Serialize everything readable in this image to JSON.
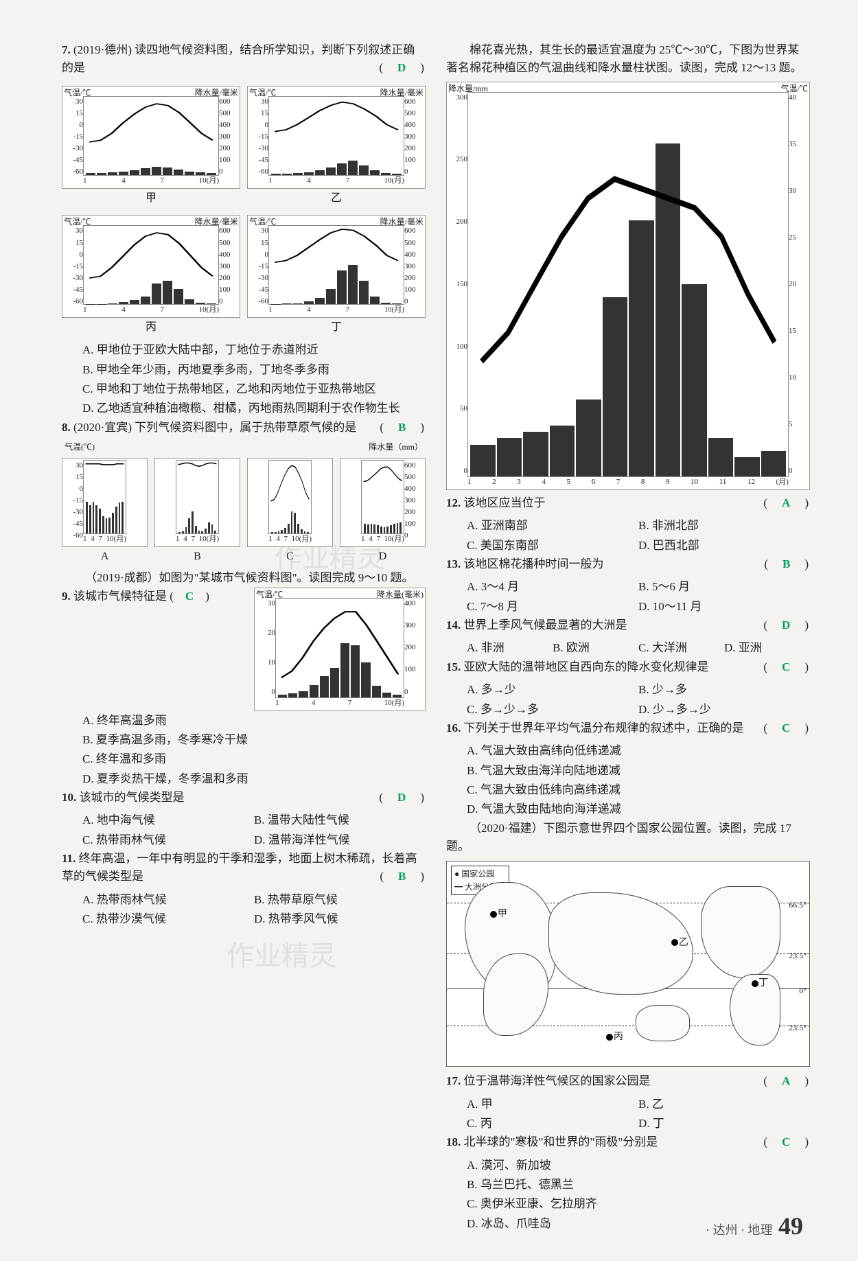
{
  "footer": {
    "region": "· 达州 · 地理",
    "page": "49"
  },
  "watermarks": [
    "作业精灵",
    "作业精灵"
  ],
  "chart_axis": {
    "temp_label": "气温/℃",
    "precip_label": "降水量/毫米",
    "precip_label_mm": "降水量（mm）",
    "precip_label_hao": "降水量(毫米)",
    "precip_mm": "降水量/mm",
    "temp_c": "气温/℃",
    "month": "(月)",
    "temp_ticks_30_n60": [
      "30",
      "15",
      "0",
      "-15",
      "-30",
      "-45",
      "-60"
    ],
    "precip_ticks_600": [
      "600",
      "500",
      "400",
      "300",
      "200",
      "100",
      "0"
    ],
    "x_months": [
      "1",
      "4",
      "7",
      "10(月)"
    ],
    "x_months_b": [
      "1",
      "4",
      "7",
      "10月"
    ],
    "cotton_y_l": [
      "300",
      "250",
      "200",
      "150",
      "100",
      "50",
      "0"
    ],
    "cotton_y_r": [
      "40",
      "35",
      "30",
      "25",
      "20",
      "15",
      "10",
      "5",
      "0"
    ],
    "cotton_x": [
      "1",
      "2",
      "3",
      "4",
      "5",
      "6",
      "7",
      "8",
      "9",
      "10",
      "11",
      "12",
      "(月)"
    ],
    "chengdu_temp": [
      "30",
      "20",
      "10",
      "0"
    ],
    "chengdu_precip": [
      "400",
      "300",
      "200",
      "100",
      "0"
    ]
  },
  "charts": {
    "q7": {
      "names": [
        "甲",
        "乙",
        "丙",
        "丁"
      ],
      "temp_lines": {
        "jia": [
          -22,
          -20,
          -12,
          0,
          10,
          18,
          22,
          20,
          12,
          0,
          -12,
          -20
        ],
        "yi": [
          -10,
          -8,
          -2,
          6,
          14,
          20,
          24,
          22,
          16,
          8,
          -2,
          -8
        ],
        "bing": [
          -30,
          -28,
          -18,
          -5,
          8,
          18,
          22,
          20,
          10,
          -4,
          -18,
          -28
        ],
        "ding": [
          -12,
          -10,
          -4,
          5,
          14,
          22,
          26,
          25,
          18,
          8,
          -4,
          -10
        ]
      },
      "precip_bars": {
        "jia": [
          15,
          15,
          18,
          25,
          35,
          50,
          60,
          55,
          40,
          25,
          18,
          15
        ],
        "yi": [
          8,
          10,
          12,
          20,
          35,
          55,
          90,
          110,
          70,
          35,
          15,
          10
        ],
        "bing": [
          5,
          5,
          8,
          18,
          35,
          60,
          160,
          180,
          120,
          40,
          12,
          6
        ],
        "ding": [
          5,
          6,
          10,
          25,
          50,
          120,
          260,
          300,
          180,
          60,
          15,
          6
        ]
      }
    },
    "q8": {
      "names": [
        "A",
        "B",
        "C",
        "D"
      ],
      "temp": {
        "A": [
          26,
          26,
          26,
          26,
          26,
          25,
          25,
          25,
          25,
          26,
          26,
          26
        ],
        "B": [
          25,
          26,
          27,
          27,
          26,
          24,
          23,
          24,
          26,
          27,
          27,
          26
        ],
        "C": [
          -20,
          -18,
          -10,
          2,
          12,
          20,
          24,
          22,
          14,
          4,
          -10,
          -18
        ],
        "D": [
          4,
          5,
          8,
          12,
          16,
          20,
          22,
          22,
          18,
          13,
          8,
          5
        ]
      },
      "precip": {
        "A": [
          260,
          230,
          260,
          230,
          200,
          140,
          120,
          130,
          170,
          220,
          250,
          260
        ],
        "B": [
          10,
          15,
          50,
          120,
          180,
          60,
          20,
          15,
          40,
          90,
          70,
          20
        ],
        "C": [
          8,
          8,
          12,
          25,
          45,
          80,
          180,
          170,
          80,
          30,
          12,
          8
        ],
        "D": [
          80,
          70,
          75,
          70,
          65,
          55,
          50,
          55,
          65,
          80,
          85,
          90
        ]
      }
    },
    "chengdu": {
      "temp": [
        6,
        8,
        12,
        17,
        21,
        24,
        26,
        26,
        22,
        17,
        12,
        7
      ],
      "precip": [
        10,
        15,
        25,
        50,
        85,
        120,
        220,
        210,
        140,
        45,
        18,
        10
      ]
    },
    "cotton": {
      "temp": [
        12,
        15,
        20,
        25,
        29,
        31,
        30,
        29,
        28,
        25,
        19,
        14
      ],
      "precip": [
        25,
        30,
        35,
        40,
        60,
        140,
        200,
        260,
        150,
        30,
        15,
        20
      ]
    }
  },
  "left": {
    "q7": {
      "num": "7.",
      "src": "(2019·德州)",
      "stem": "读四地气候资料图，结合所学知识，判断下列叙述正确的是",
      "answer": "D",
      "opts": [
        "A. 甲地位于亚欧大陆中部，丁地位于赤道附近",
        "B. 甲地全年少雨，丙地夏季多雨，丁地冬季多雨",
        "C. 甲地和丁地位于热带地区，乙地和丙地位于亚热带地区",
        "D. 乙地适宜种植油橄榄、柑橘，丙地雨热同期利于农作物生长"
      ]
    },
    "q8": {
      "num": "8.",
      "src": "(2020·宜宾)",
      "stem": "下列气候资料图中，属于热带草原气候的是",
      "answer": "B",
      "axis_l": "气温(℃)",
      "axis_r": "降水量（mm）"
    },
    "intro910": "（2019·成都）如图为\"某城市气候资料图\"。读图完成 9～10 题。",
    "q9": {
      "num": "9.",
      "stem": "该城市气候特征是",
      "answer": "C",
      "opts": [
        "A. 终年高温多雨",
        "B. 夏季高温多雨，冬季寒冷干燥",
        "C. 终年温和多雨",
        "D. 夏季炎热干燥，冬季温和多雨"
      ]
    },
    "q10": {
      "num": "10.",
      "stem": "该城市的气候类型是",
      "answer": "D",
      "opts": [
        "A. 地中海气候",
        "B. 温带大陆性气候",
        "C. 热带雨林气候",
        "D. 温带海洋性气候"
      ]
    },
    "q11": {
      "num": "11.",
      "stem": "终年高温，一年中有明显的干季和湿季，地面上树木稀疏，长着高草的气候类型是",
      "answer": "B",
      "opts": [
        "A. 热带雨林气候",
        "B. 热带草原气候",
        "C. 热带沙漠气候",
        "D. 热带季风气候"
      ]
    }
  },
  "right": {
    "intro1213": "棉花喜光热，其生长的最适宜温度为 25℃～30℃，下图为世界某著名棉花种植区的气温曲线和降水量柱状图。读图，完成 12～13 题。",
    "q12": {
      "num": "12.",
      "stem": "该地区应当位于",
      "answer": "A",
      "opts": [
        "A. 亚洲南部",
        "B. 非洲北部",
        "C. 美国东南部",
        "D. 巴西北部"
      ]
    },
    "q13": {
      "num": "13.",
      "stem": "该地区棉花播种时间一般为",
      "answer": "B",
      "opts": [
        "A. 3～4 月",
        "B. 5～6 月",
        "C. 7～8 月",
        "D. 10～11 月"
      ]
    },
    "q14": {
      "num": "14.",
      "stem": "世界上季风气候最显著的大洲是",
      "answer": "D",
      "opts": [
        "A. 非洲",
        "B. 欧洲",
        "C. 大洋洲",
        "D. 亚洲"
      ]
    },
    "q15": {
      "num": "15.",
      "stem": "亚欧大陆的温带地区自西向东的降水变化规律是",
      "answer": "C",
      "opts": [
        "A. 多→少",
        "B. 少→多",
        "C. 多→少→多",
        "D. 少→多→少"
      ]
    },
    "q16": {
      "num": "16.",
      "stem": "下列关于世界年平均气温分布规律的叙述中，正确的是",
      "answer": "C",
      "opts": [
        "A. 气温大致由高纬向低纬递减",
        "B. 气温大致由海洋向陆地递减",
        "C. 气温大致由低纬向高纬递减",
        "D. 气温大致由陆地向海洋递减"
      ]
    },
    "intro17": "（2020·福建）下图示意世界四个国家公园位置。读图，完成 17 题。",
    "map_legend": [
      "● 国家公园",
      "━ 大洲分界线"
    ],
    "map_lats": [
      "66.5°",
      "23.5°",
      "0°",
      "23.5°"
    ],
    "map_pts": {
      "jia": "甲",
      "yi": "乙",
      "bing": "丙",
      "ding": "丁"
    },
    "q17": {
      "num": "17.",
      "stem": "位于温带海洋性气候区的国家公园是",
      "answer": "A",
      "opts": [
        "A. 甲",
        "B. 乙",
        "C. 丙",
        "D. 丁"
      ]
    },
    "q18": {
      "num": "18.",
      "stem": "北半球的\"寒极\"和世界的\"雨极\"分别是",
      "answer": "C",
      "opts": [
        "A. 漠河、新加坡",
        "B. 乌兰巴托、德黑兰",
        "C. 奥伊米亚康、乞拉朋齐",
        "D. 冰岛、爪哇岛"
      ]
    }
  }
}
